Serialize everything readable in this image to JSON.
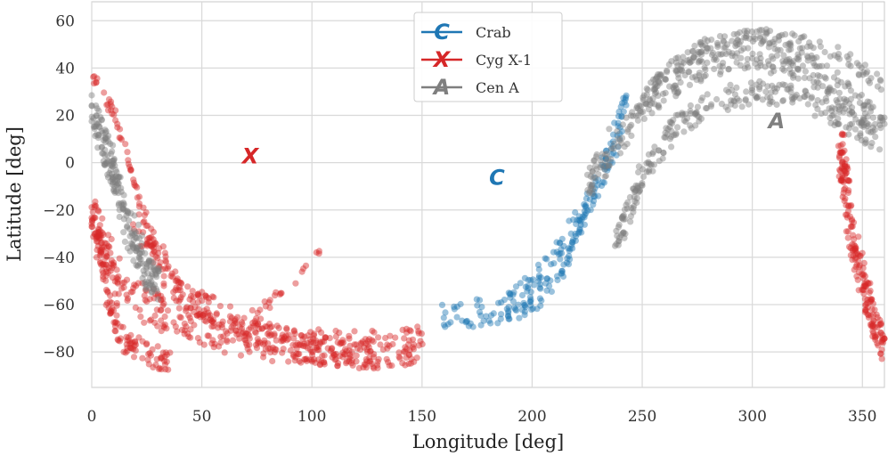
{
  "chart_data": {
    "type": "scatter",
    "xlabel": "Longitude [deg]",
    "ylabel": "Latitude [deg]",
    "xlim": [
      0,
      360
    ],
    "ylim": [
      -95,
      68
    ],
    "xticks": [
      0,
      50,
      100,
      150,
      200,
      250,
      300,
      350
    ],
    "yticks": [
      -80,
      -60,
      -40,
      -20,
      0,
      20,
      40,
      60
    ],
    "grid": true,
    "legend_placement": "top-center",
    "series": [
      {
        "name": "Crab",
        "marker": "C",
        "color": "#1f77b4",
        "source_position": {
          "x": 184,
          "y": -6
        },
        "bands": [
          {
            "x": [
              160,
              175,
              190,
              200,
              210,
              218,
              225,
              232,
              238,
              242
            ],
            "y": [
              -66,
              -64,
              -60,
              -52,
              -42,
              -30,
              -18,
              -4,
              10,
              26
            ],
            "spread": 6,
            "count": 170
          },
          {
            "x": [
              170,
              185,
              198,
              208,
              215,
              220,
              224
            ],
            "y": [
              -67,
              -66,
              -62,
              -54,
              -44,
              -32,
              -20
            ],
            "spread": 3,
            "count": 70
          }
        ]
      },
      {
        "name": "Cyg X-1",
        "marker": "X",
        "color": "#d62728",
        "source_position": {
          "x": 72,
          "y": 3
        },
        "bands": [
          {
            "x": [
              0,
              5,
              15,
              30,
              45,
              60,
              80,
              100,
              120,
              140,
              150
            ],
            "y": [
              -20,
              -35,
              -55,
              -62,
              -67,
              -72,
              -76,
              -78,
              -79,
              -79,
              -76
            ],
            "spread": 8,
            "count": 380
          },
          {
            "x": [
              20,
              30,
              40,
              55,
              70,
              85,
              100,
              115,
              130
            ],
            "y": [
              -25,
              -40,
              -55,
              -63,
              -70,
              -75,
              -79,
              -80,
              -81
            ],
            "spread": 6,
            "count": 220
          },
          {
            "x": [
              0,
              4,
              8,
              15,
              25,
              35
            ],
            "y": [
              -20,
              -40,
              -60,
              -75,
              -82,
              -83
            ],
            "spread": 5,
            "count": 110
          },
          {
            "x": [
              60,
              70,
              80,
              90,
              100,
              108
            ],
            "y": [
              -70,
              -66,
              -60,
              -52,
              -42,
              -30
            ],
            "spread": 2,
            "count": 25
          },
          {
            "x": [
              340,
              342,
              345,
              350,
              355,
              360
            ],
            "y": [
              10,
              -10,
              -30,
              -50,
              -65,
              -80
            ],
            "spread": 6,
            "count": 200
          },
          {
            "x": [
              0,
              5,
              10,
              15,
              20,
              25,
              30,
              40,
              50
            ],
            "y": [
              37,
              30,
              20,
              5,
              -10,
              -25,
              -40,
              -52,
              -60
            ],
            "spread": 3,
            "count": 70
          }
        ]
      },
      {
        "name": "Cen A",
        "marker": "A",
        "color": "#7f7f7f",
        "source_position": {
          "x": 311,
          "y": 18
        },
        "bands": [
          {
            "x": [
              225,
              240,
              255,
              270,
              285,
              300,
              315,
              330,
              345,
              360
            ],
            "y": [
              -10,
              12,
              28,
              38,
              44,
              46,
              44,
              38,
              28,
              12
            ],
            "spread": 7,
            "count": 360
          },
          {
            "x": [
              238,
              250,
              265,
              280,
              300,
              320,
              340,
              355
            ],
            "y": [
              -35,
              -5,
              15,
              25,
              30,
              28,
              20,
              10
            ],
            "spread": 5,
            "count": 260
          },
          {
            "x": [
              250,
              265,
              280,
              300,
              320,
              340,
              360
            ],
            "y": [
              28,
              42,
              50,
              54,
              52,
              46,
              32
            ],
            "spread": 3,
            "count": 130
          },
          {
            "x": [
              0,
              5,
              10,
              15,
              20,
              25,
              30
            ],
            "y": [
              25,
              10,
              -5,
              -20,
              -35,
              -45,
              -52
            ],
            "spread": 7,
            "count": 220
          }
        ]
      }
    ]
  }
}
